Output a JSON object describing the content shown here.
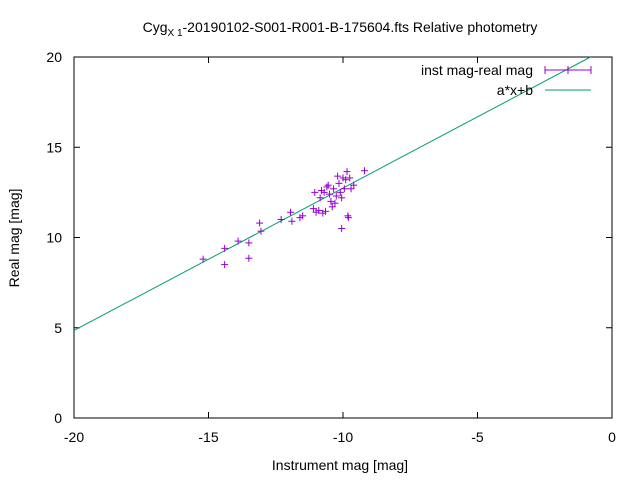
{
  "chart_data": {
    "type": "scatter",
    "title_main": "Cyg",
    "title_sub": "X 1",
    "title_rest": "-20190102-S001-R001-B-175604.fts Relative photometry",
    "xlabel": "Instrument mag [mag]",
    "ylabel": "Real mag [mag]",
    "xlim": [
      -20,
      0
    ],
    "ylim": [
      0,
      20
    ],
    "xticks": [
      -20,
      -15,
      -10,
      -5,
      0
    ],
    "yticks": [
      0,
      5,
      10,
      15,
      20
    ],
    "grid": false,
    "legend_position": "top-right",
    "series": [
      {
        "name": "inst mag-real mag",
        "kind": "points-with-errorbars",
        "color": "#9400d3",
        "points": [
          [
            -15.2,
            8.8
          ],
          [
            -14.4,
            8.5
          ],
          [
            -14.4,
            9.4
          ],
          [
            -13.9,
            9.8
          ],
          [
            -13.5,
            9.7
          ],
          [
            -13.5,
            8.85
          ],
          [
            -13.1,
            10.8
          ],
          [
            -13.05,
            10.35
          ],
          [
            -12.3,
            11.0
          ],
          [
            -11.95,
            11.4
          ],
          [
            -11.9,
            10.9
          ],
          [
            -11.6,
            11.1
          ],
          [
            -11.5,
            11.2
          ],
          [
            -11.1,
            11.6
          ],
          [
            -11.05,
            12.5
          ],
          [
            -11.0,
            11.4
          ],
          [
            -10.9,
            11.5
          ],
          [
            -10.85,
            12.2
          ],
          [
            -10.8,
            12.6
          ],
          [
            -10.75,
            11.35
          ],
          [
            -10.7,
            12.5
          ],
          [
            -10.65,
            11.45
          ],
          [
            -10.6,
            12.8
          ],
          [
            -10.55,
            12.9
          ],
          [
            -10.5,
            12.4
          ],
          [
            -10.45,
            12.0
          ],
          [
            -10.4,
            11.7
          ],
          [
            -10.35,
            12.7
          ],
          [
            -10.3,
            11.9
          ],
          [
            -10.25,
            12.3
          ],
          [
            -10.2,
            13.4
          ],
          [
            -10.15,
            13.0
          ],
          [
            -10.1,
            12.5
          ],
          [
            -10.05,
            10.5
          ],
          [
            -10.05,
            12.2
          ],
          [
            -10.0,
            13.3
          ],
          [
            -9.95,
            12.7
          ],
          [
            -9.9,
            13.2
          ],
          [
            -9.85,
            13.65
          ],
          [
            -9.82,
            11.2
          ],
          [
            -9.8,
            11.1
          ],
          [
            -9.75,
            13.3
          ],
          [
            -9.7,
            12.7
          ],
          [
            -9.6,
            12.9
          ],
          [
            -9.2,
            13.7
          ]
        ]
      },
      {
        "name": "a*x+b",
        "kind": "line",
        "color": "#009e73",
        "line": [
          [
            -20,
            4.85
          ],
          [
            -0.8,
            20
          ]
        ]
      }
    ]
  }
}
